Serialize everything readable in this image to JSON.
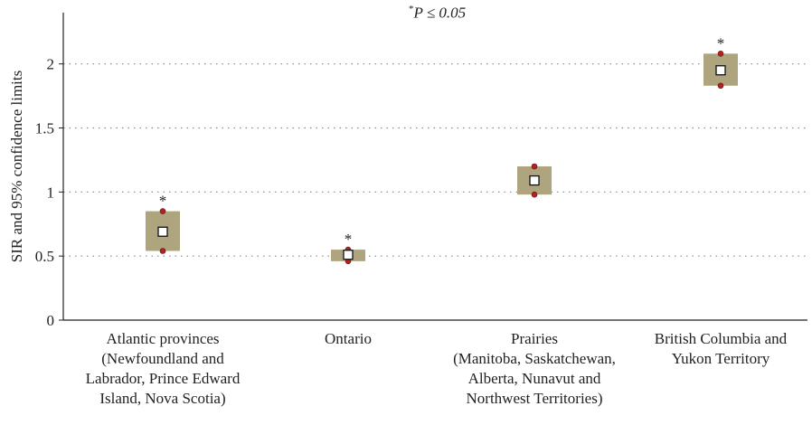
{
  "chart_data": {
    "type": "scatter",
    "title": "",
    "ylabel": "SIR and 95% confidence limits",
    "xlabel": "",
    "ylim": [
      0,
      2.4
    ],
    "yticks": [
      "0",
      "0.5",
      "1",
      "1.5",
      "2"
    ],
    "grid": "horizontal dotted",
    "significance_note": {
      "marker": "*",
      "text": "P ≤ 0.05"
    },
    "categories": [
      "Atlantic provinces\n(Newfoundland and\nLabrador, Prince Edward\nIsland, Nova Scotia)",
      "Ontario",
      "Prairies\n(Manitoba, Saskatchewan,\nAlberta, Nunavut and\nNorthwest Territories)",
      "British Columbia and\nYukon Territory"
    ],
    "series": [
      {
        "name": "SIR",
        "values": [
          0.69,
          0.51,
          1.09,
          1.95
        ]
      },
      {
        "name": "lower 95% limit",
        "values": [
          0.54,
          0.46,
          0.98,
          1.83
        ]
      },
      {
        "name": "upper 95% limit",
        "values": [
          0.85,
          0.55,
          1.2,
          2.08
        ]
      }
    ],
    "significant": [
      "*",
      "*",
      "",
      "*"
    ],
    "colors": {
      "box": "#aea57f",
      "ci_point": "#b22222",
      "estimate_fill": "#ffffff",
      "grid": "#888888"
    }
  }
}
